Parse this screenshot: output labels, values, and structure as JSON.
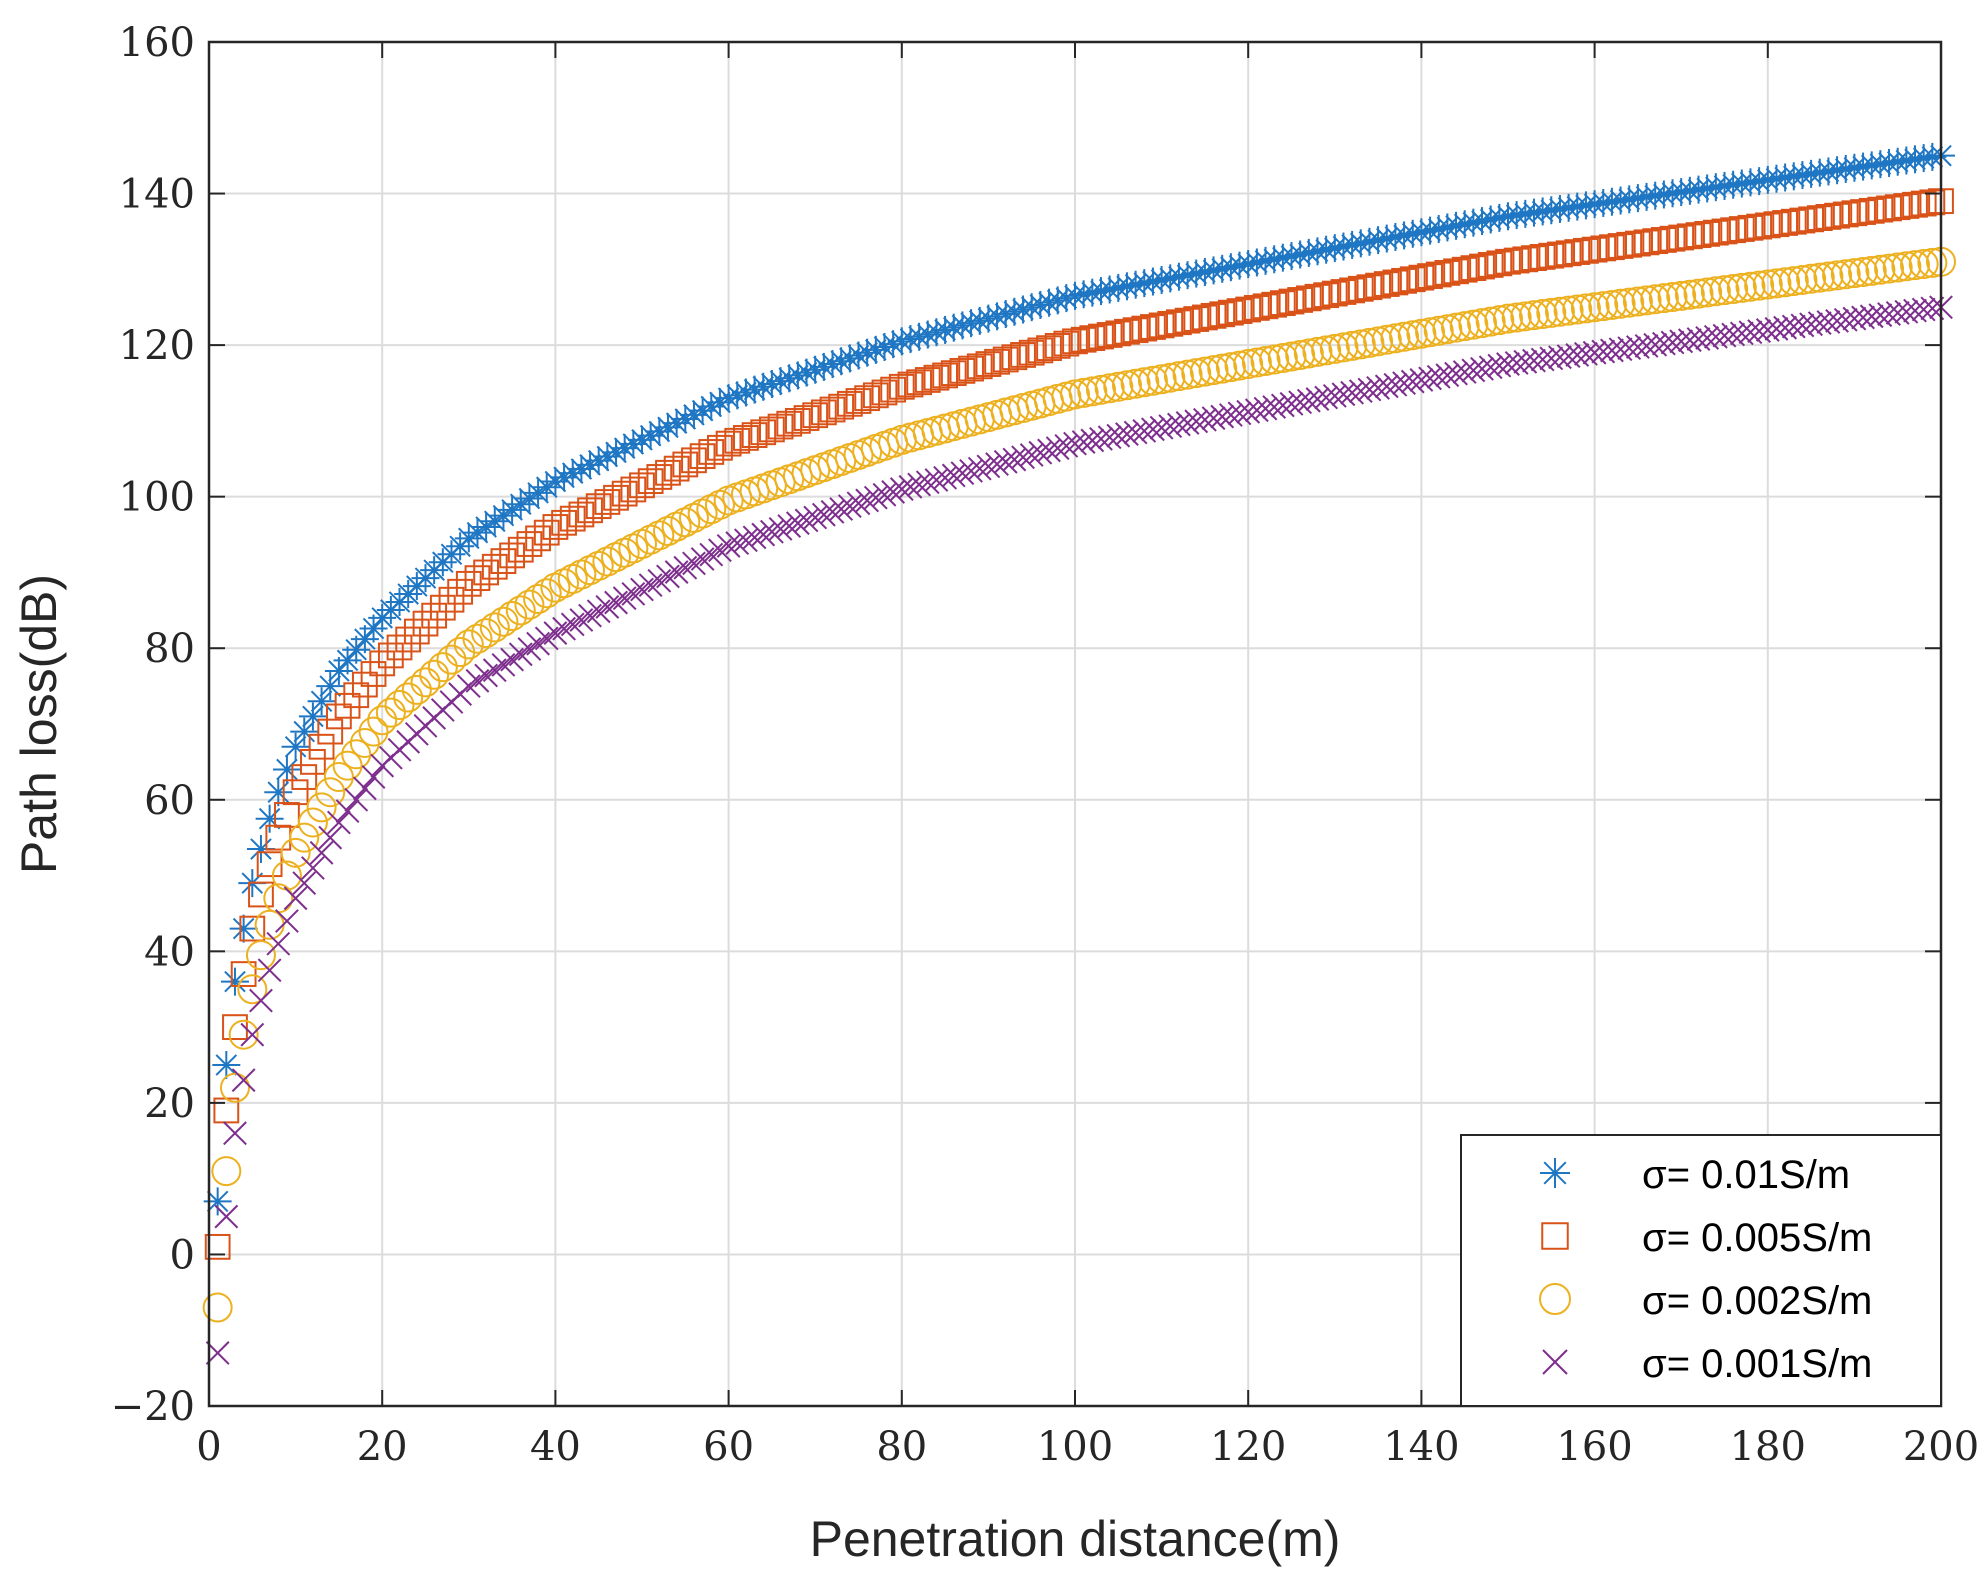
{
  "chart_data": {
    "type": "scatter",
    "title": "",
    "xlabel": "Penetration distance(m)",
    "ylabel": "Path loss(dB)",
    "xlim": [
      0,
      200
    ],
    "ylim": [
      -20,
      160
    ],
    "xticks": [
      0,
      20,
      40,
      60,
      80,
      100,
      120,
      140,
      160,
      180,
      200
    ],
    "yticks": [
      -20,
      0,
      20,
      40,
      60,
      80,
      100,
      120,
      140,
      160
    ],
    "xtick_labels": [
      "0",
      "20",
      "40",
      "60",
      "80",
      "100",
      "120",
      "140",
      "160",
      "180",
      "200"
    ],
    "ytick_labels": [
      "−20",
      "0",
      "20",
      "40",
      "60",
      "80",
      "100",
      "120",
      "140",
      "160"
    ],
    "grid": true,
    "legend_position": "bottom-right",
    "x_range": {
      "start": 1,
      "end": 200,
      "step": 1
    },
    "series": [
      {
        "name": "σ= 0.01S/m",
        "marker": "asterisk",
        "color": "#1f77c4",
        "x": [
          1,
          2,
          3,
          4,
          5,
          6,
          7,
          8,
          10,
          15,
          20,
          30,
          40,
          60,
          80,
          100,
          150,
          200
        ],
        "y": [
          7,
          25,
          36,
          43,
          49,
          53.5,
          57.5,
          61,
          67,
          77,
          84,
          94.5,
          102,
          113,
          120.5,
          126.5,
          137,
          145
        ]
      },
      {
        "name": "σ= 0.005S/m",
        "marker": "square",
        "color": "#d95319",
        "x": [
          1,
          2,
          3,
          4,
          5,
          6,
          7,
          8,
          10,
          15,
          20,
          30,
          40,
          60,
          80,
          100,
          150,
          200
        ],
        "y": [
          1,
          19,
          30,
          37,
          43,
          47.5,
          51.5,
          55,
          61,
          71,
          78,
          88.5,
          96,
          107,
          114.5,
          120.5,
          131,
          139
        ]
      },
      {
        "name": "σ= 0.002S/m",
        "marker": "circle",
        "color": "#edb120",
        "x": [
          1,
          2,
          3,
          4,
          5,
          6,
          7,
          8,
          10,
          15,
          20,
          30,
          40,
          60,
          80,
          100,
          150,
          200
        ],
        "y": [
          -7,
          11,
          22,
          29,
          35,
          39.5,
          43.5,
          47,
          53,
          63,
          70.5,
          80.5,
          88,
          99.5,
          107.5,
          113.5,
          123.5,
          131
        ]
      },
      {
        "name": "σ= 0.001S/m",
        "marker": "x",
        "color": "#7e2f8e",
        "x": [
          1,
          2,
          3,
          4,
          5,
          6,
          7,
          8,
          10,
          15,
          20,
          30,
          40,
          60,
          80,
          100,
          150,
          200
        ],
        "y": [
          -13,
          5,
          16,
          23,
          29,
          33.5,
          37.5,
          41,
          47,
          57,
          64.5,
          75,
          82,
          93.5,
          101,
          107,
          117.5,
          125
        ]
      }
    ]
  }
}
